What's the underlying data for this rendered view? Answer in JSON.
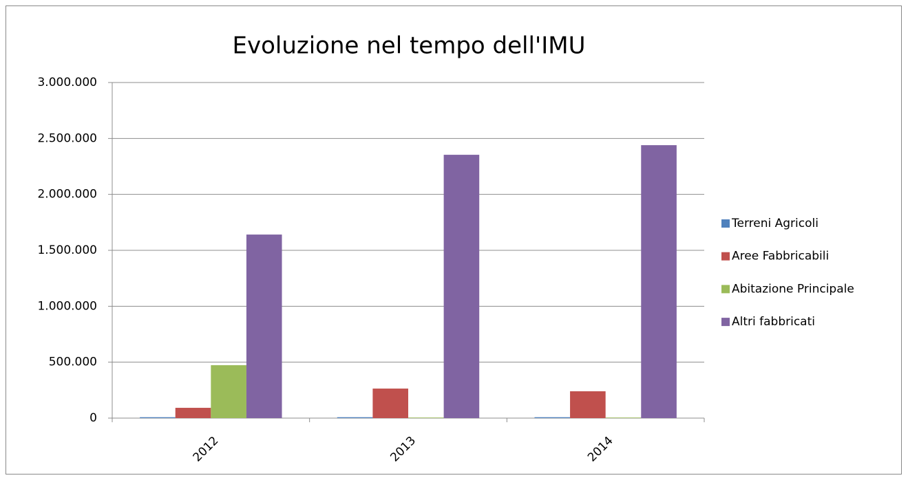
{
  "chart_data": {
    "type": "bar",
    "title": "Evoluzione nel tempo dell'IMU",
    "categories": [
      "2012",
      "2013",
      "2014"
    ],
    "series": [
      {
        "name": "Terreni Agricoli",
        "color": "#4f81bd",
        "values": [
          8000,
          8000,
          8000
        ]
      },
      {
        "name": "Aree Fabbricabili",
        "color": "#c0504d",
        "values": [
          92000,
          264000,
          240000
        ]
      },
      {
        "name": "Abitazione Principale",
        "color": "#9bbb59",
        "values": [
          473000,
          5000,
          5000
        ]
      },
      {
        "name": "Altri fabbricati",
        "color": "#8064a2",
        "values": [
          1641000,
          2354000,
          2440000
        ]
      }
    ],
    "ylim": [
      0,
      3000000
    ],
    "yticks": [
      0,
      {
        "value": 500000,
        "label": "500.000"
      },
      {
        "value": 1000000,
        "label": "1.000.000"
      },
      {
        "value": 1500000,
        "label": "1.500.000"
      },
      {
        "value": 2000000,
        "label": "2.000.000"
      },
      {
        "value": 2500000,
        "label": "2.500.000"
      },
      {
        "value": 3000000,
        "label": "3.000.000"
      }
    ],
    "grid": true,
    "legend": "right"
  }
}
